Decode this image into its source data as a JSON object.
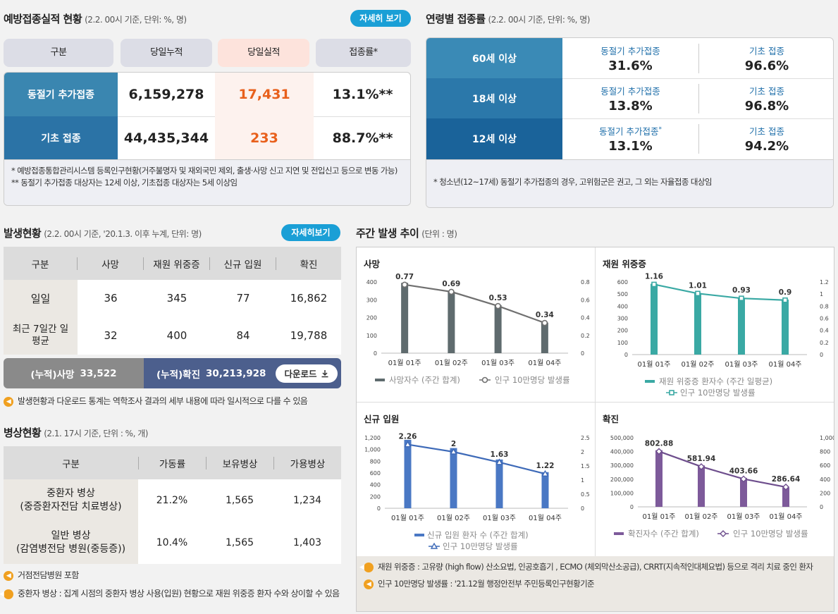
{
  "vax": {
    "title": "예방접종실적 현황",
    "sub": "(2.2. 00시 기준, 단위: %, 명)",
    "more": "자세히 보기",
    "headers": [
      "구분",
      "당일누적",
      "당일실적",
      "접종률*"
    ],
    "rows": [
      {
        "label": "동절기 추가접종",
        "cum": "6,159,278",
        "day": "17,431",
        "rate": "13.1%**"
      },
      {
        "label": "기초 접종",
        "cum": "44,435,344",
        "day": "233",
        "rate": "88.7%**"
      }
    ],
    "note1": "* 예방접종통합관리시스템 등록인구현황(거주불명자 및 재외국민 제외, 출생·사망 신고 지연 및 전입신고 등으로 변동 가능)",
    "note2": "** 동절기 추가접종 대상자는 12세 이상, 기초접종 대상자는 5세 이상임"
  },
  "age": {
    "title": "연령별 접종률",
    "sub": "(2.2. 00시 기준, 단위: %, 명)",
    "rows": [
      {
        "label": "60세 이상",
        "a_label": "동절기 추가접종",
        "a": "31.6%",
        "b_label": "기초 접종",
        "b": "96.6%"
      },
      {
        "label": "18세 이상",
        "a_label": "동절기 추가접종",
        "a": "13.8%",
        "b_label": "기초 접종",
        "b": "96.8%"
      },
      {
        "label": "12세 이상",
        "a_label": "동절기 추가접종",
        "a_mark": "*",
        "a": "13.1%",
        "b_label": "기초 접종",
        "b": "94.2%"
      }
    ],
    "note": "* 청소년(12~17세) 동절기 추가접종의 경우, 고위험군은 권고, 그 외는 자율접종 대상임"
  },
  "occ": {
    "title": "발생현황",
    "sub": "(2.2. 00시 기준, '20.1.3. 이후 누계, 단위: 명)",
    "more": "자세히보기",
    "headers": [
      "구분",
      "사망",
      "재원 위중증",
      "신규 입원",
      "확진"
    ],
    "rows": [
      {
        "label": "일일",
        "c1": "36",
        "c2": "345",
        "c3": "77",
        "c4": "16,862"
      },
      {
        "label": "최근 7일간 일평균",
        "c1": "32",
        "c2": "400",
        "c3": "84",
        "c4": "19,788"
      }
    ],
    "cum_death_label": "(누적)사망",
    "cum_death": "33,522",
    "cum_conf_label": "(누적)확진",
    "cum_conf": "30,213,928",
    "download": "다운로드",
    "note": "발생현황과 다운로드 통계는 역학조사 결과의 세부 내용에 따라 일시적으로 다를 수 있음"
  },
  "bed": {
    "title": "병상현황",
    "sub": "(2.1. 17시 기준, 단위 : %, 개)",
    "headers": [
      "구분",
      "가동률",
      "보유병상",
      "가용병상"
    ],
    "rows": [
      {
        "label1": "중환자 병상",
        "label2": "(중증환자전담 치료병상)",
        "rate": "21.2%",
        "own": "1,565",
        "avail": "1,234"
      },
      {
        "label1": "일반 병상",
        "label2": "(감염병전담 병원(중등증))",
        "rate": "10.4%",
        "own": "1,565",
        "avail": "1,403"
      }
    ],
    "note1": "거점전담병원 포함",
    "note2": "중환자 병상 : 집계 시점의 중환자 병상 사용(입원) 현황으로 재원 위중증 환자 수와 상이할 수 있음"
  },
  "weekly": {
    "title": "주간 발생 추이",
    "sub": "(단위 : 명)",
    "note1": "재원 위중증 : 고유량 (high flow) 산소요법, 인공호흡기 , ECMO (체외막산소공급), CRRT(지속적인대체요법) 등으로 격리 치료 중인 환자",
    "note2": "인구 10만명당 발생률 : '21.12월 행정안전부 주민등록인구현황기준"
  },
  "chart_data": [
    {
      "type": "bar",
      "title": "사망",
      "categories": [
        "01월 01주",
        "01월 02주",
        "01월 03주",
        "01월 04주"
      ],
      "series": [
        {
          "name": "사망자수 (주간 합계)",
          "values": [
            395,
            345,
            270,
            172
          ]
        },
        {
          "name": "인구 10만명당 발생률",
          "values": [
            0.77,
            0.69,
            0.53,
            0.34
          ]
        }
      ],
      "ylim": [
        0,
        400
      ],
      "y2lim": [
        0,
        0.8
      ],
      "yticks": [
        "0",
        "100",
        "200",
        "300",
        "400"
      ],
      "y2ticks": [
        "0",
        "0.2",
        "0.4",
        "0.6",
        "0.8"
      ],
      "labels": [
        "0.77",
        "0.69",
        "0.53",
        "0.34"
      ],
      "color": "#5f6b6e",
      "color2": "#707070",
      "marker": "o"
    },
    {
      "type": "bar",
      "title": "재원 위중증",
      "categories": [
        "01월 01주",
        "01월 02주",
        "01월 03주",
        "01월 04주"
      ],
      "series": [
        {
          "name": "재원 위중증 환자수 (주간 일평균)",
          "values": [
            585,
            510,
            470,
            455
          ]
        },
        {
          "name": "인구 10만명당 발생률",
          "values": [
            1.16,
            1.01,
            0.93,
            0.9
          ]
        }
      ],
      "ylim": [
        0,
        600
      ],
      "y2lim": [
        0,
        1.2
      ],
      "yticks": [
        "0",
        "100",
        "200",
        "300",
        "400",
        "500",
        "600"
      ],
      "y2ticks": [
        "0",
        "0.2",
        "0.4",
        "0.6",
        "0.8",
        "1",
        "1.2"
      ],
      "labels": [
        "1.16",
        "1.01",
        "0.93",
        "0.9"
      ],
      "color": "#3aa9a4",
      "color2": "#3aa9a4",
      "marker": "s"
    },
    {
      "type": "bar",
      "title": "신규 입원",
      "categories": [
        "01월 01주",
        "01월 02주",
        "01월 03주",
        "01월 04주"
      ],
      "series": [
        {
          "name": "신규 입원 환자 수 (주간 합계)",
          "values": [
            1165,
            1025,
            830,
            615
          ]
        },
        {
          "name": "인구 10만명당 발생률",
          "values": [
            2.26,
            2,
            1.63,
            1.22
          ]
        }
      ],
      "ylim": [
        0,
        1200
      ],
      "y2lim": [
        0,
        2.5
      ],
      "yticks": [
        "0",
        "200",
        "400",
        "600",
        "800",
        "1,000",
        "1,200"
      ],
      "y2ticks": [
        "0",
        "0.5",
        "1",
        "1.5",
        "2",
        "2.5"
      ],
      "labels": [
        "2.26",
        "2",
        "1.63",
        "1.22"
      ],
      "color": "#4a78c4",
      "color2": "#3e6ab8",
      "marker": "t"
    },
    {
      "type": "bar",
      "title": "확진",
      "categories": [
        "01월 01주",
        "01월 02주",
        "01월 03주",
        "01월 04주"
      ],
      "series": [
        {
          "name": "확진자수 (주간 합계)",
          "values": [
            410000,
            300000,
            210000,
            140000
          ]
        },
        {
          "name": "인구 10만명당 발생률",
          "values": [
            802.88,
            581.94,
            403.66,
            286.64
          ]
        }
      ],
      "ylim": [
        0,
        500000
      ],
      "y2lim": [
        0,
        1000
      ],
      "yticks": [
        "0",
        "100,000",
        "200,000",
        "300,000",
        "400,000",
        "500,000"
      ],
      "y2ticks": [
        "0",
        "200",
        "400",
        "600",
        "800",
        "1,000"
      ],
      "labels": [
        "802.88",
        "581.94",
        "403.66",
        "286.64"
      ],
      "color": "#7d5a9a",
      "color2": "#6e4e8d",
      "marker": "d"
    }
  ]
}
